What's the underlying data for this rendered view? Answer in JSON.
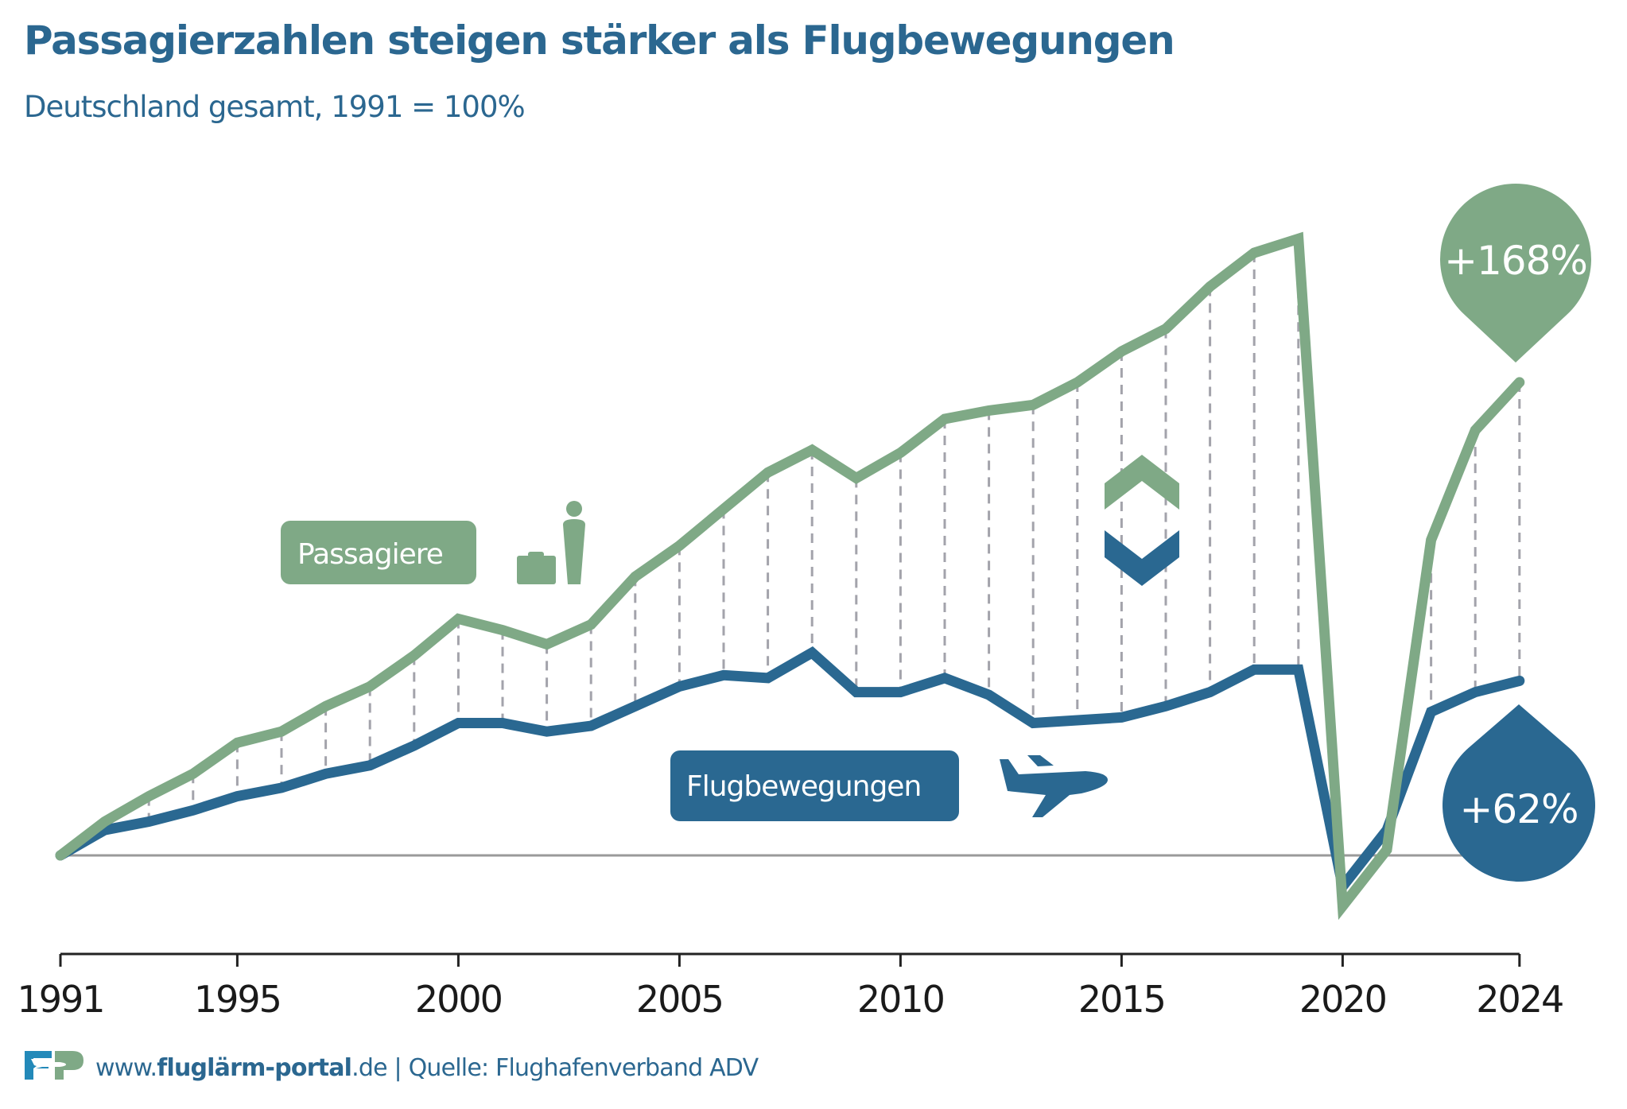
{
  "header": {
    "title": "Passagierzahlen steigen stärker als Flugbewegungen",
    "subtitle": "Deutschland gesamt, 1991 = 100%"
  },
  "legend": {
    "passengers_label": "Passagiere",
    "flights_label": "Flugbewegungen",
    "passengers_icon": "traveler-with-suitcase-icon",
    "flights_icon": "airplane-icon",
    "comparison_icon": "up-down-chevrons-icon"
  },
  "callouts": {
    "passengers_change": "+168%",
    "flights_change": "+62%"
  },
  "footer": {
    "url_prefix": "www.",
    "url_bold": "fluglärm-portal",
    "url_suffix": ".de",
    "source": " | Quelle: Flughafenverband ADV",
    "logo_text": "FP"
  },
  "colors": {
    "passengers": "#7fa986",
    "flights": "#2a6891",
    "title": "#2b6790",
    "dashes": "#a3a3ab",
    "baseline": "#9a9a9a",
    "axis": "#222222"
  },
  "chart_data": {
    "type": "line",
    "title": "Passagierzahlen steigen stärker als Flugbewegungen",
    "subtitle": "Deutschland gesamt, 1991 = 100%",
    "xlabel": "",
    "ylabel": "",
    "x": [
      1991,
      1992,
      1993,
      1994,
      1995,
      1996,
      1997,
      1998,
      1999,
      2000,
      2001,
      2002,
      2003,
      2004,
      2005,
      2006,
      2007,
      2008,
      2009,
      2010,
      2011,
      2012,
      2013,
      2014,
      2015,
      2016,
      2017,
      2018,
      2019,
      2020,
      2021,
      2022,
      2023,
      2024
    ],
    "x_ticks": [
      "1991",
      "1995",
      "2000",
      "2005",
      "2010",
      "2015",
      "2020",
      "2024"
    ],
    "baseline": 100,
    "ylim": [
      50,
      340
    ],
    "grid": false,
    "legend": "inline-labels",
    "series": [
      {
        "name": "Passagiere",
        "values": [
          100,
          112,
          121,
          129,
          140,
          144,
          153,
          160,
          171,
          184,
          180,
          175,
          182,
          199,
          210,
          223,
          236,
          244,
          234,
          243,
          255,
          258,
          260,
          268,
          279,
          287,
          302,
          314,
          319,
          82,
          102,
          212,
          251,
          268
        ]
      },
      {
        "name": "Flugbewegungen",
        "values": [
          100,
          109,
          112,
          116,
          121,
          124,
          129,
          132,
          139,
          147,
          147,
          144,
          146,
          153,
          160,
          164,
          163,
          172,
          158,
          158,
          163,
          157,
          147,
          148,
          149,
          153,
          158,
          166,
          166,
          89,
          109,
          151,
          158,
          162
        ]
      }
    ],
    "annotations": [
      {
        "series": "Passagiere",
        "year": 2024,
        "text": "+168%"
      },
      {
        "series": "Flugbewegungen",
        "year": 2024,
        "text": "+62%"
      }
    ]
  }
}
